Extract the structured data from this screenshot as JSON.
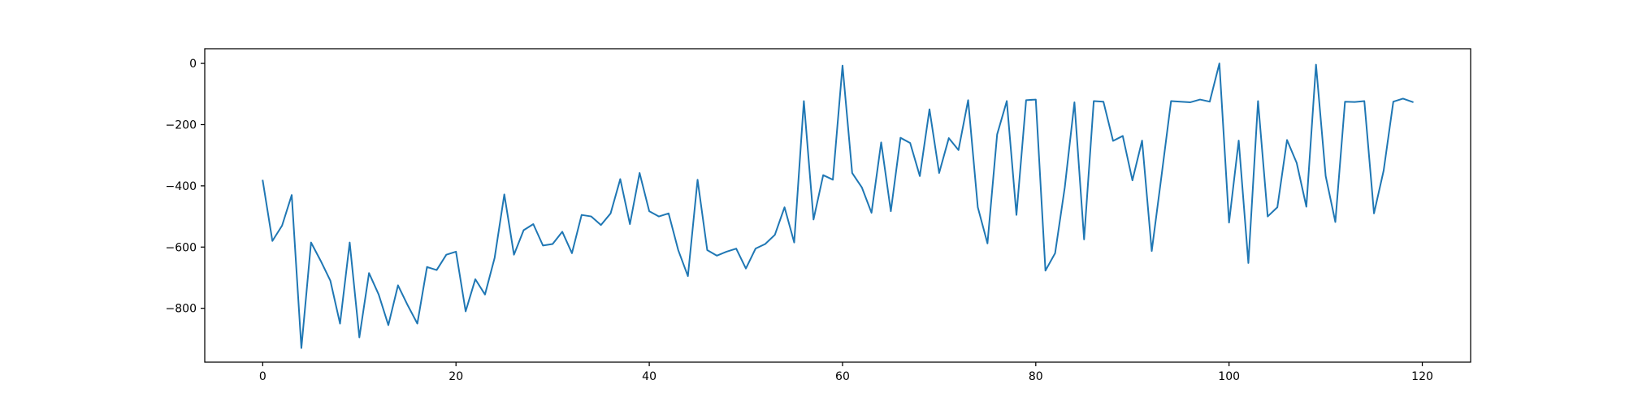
{
  "chart_data": {
    "type": "line",
    "title": "",
    "xlabel": "",
    "ylabel": "",
    "xlim": [
      -6,
      125
    ],
    "ylim": [
      -976,
      48
    ],
    "xticks": [
      0,
      20,
      40,
      60,
      80,
      100,
      120
    ],
    "yticks": [
      0,
      -200,
      -400,
      -600,
      -800
    ],
    "grid": false,
    "colors": {
      "line": "#1f77b4",
      "axes": "#000000",
      "background": "#ffffff"
    },
    "series": [
      {
        "x": [
          0,
          1,
          2,
          3,
          4,
          5,
          6,
          7,
          8,
          9,
          10,
          11,
          12,
          13,
          14,
          15,
          16,
          17,
          18,
          19,
          20,
          21,
          22,
          23,
          24,
          25,
          26,
          27,
          28,
          29,
          30,
          31,
          32,
          33,
          34,
          35,
          36,
          37,
          38,
          39,
          40,
          41,
          42,
          43,
          44,
          45,
          46,
          47,
          48,
          49,
          50,
          51,
          52,
          53,
          54,
          55,
          56,
          57,
          58,
          59,
          60,
          61,
          62,
          63,
          64,
          65,
          66,
          67,
          68,
          69,
          70,
          71,
          72,
          73,
          74,
          75,
          76,
          77,
          78,
          79,
          80,
          81,
          82,
          83,
          84,
          85,
          86,
          87,
          88,
          89,
          90,
          91,
          92,
          93,
          94,
          95,
          96,
          97,
          98,
          99,
          100,
          101,
          102,
          103,
          104,
          105,
          106,
          107,
          108,
          109,
          110,
          111,
          112,
          113,
          114,
          115,
          116,
          117,
          118,
          119
        ],
        "y": [
          -383,
          -580,
          -530,
          -430,
          -930,
          -585,
          -645,
          -710,
          -850,
          -585,
          -895,
          -685,
          -755,
          -855,
          -725,
          -790,
          -850,
          -665,
          -675,
          -625,
          -615,
          -810,
          -705,
          -755,
          -635,
          -428,
          -625,
          -545,
          -525,
          -595,
          -590,
          -550,
          -620,
          -495,
          -500,
          -528,
          -490,
          -378,
          -525,
          -358,
          -483,
          -500,
          -490,
          -610,
          -695,
          -380,
          -610,
          -628,
          -615,
          -605,
          -670,
          -605,
          -590,
          -560,
          -470,
          -585,
          -123,
          -510,
          -365,
          -380,
          -7,
          -358,
          -405,
          -488,
          -258,
          -483,
          -243,
          -260,
          -368,
          -150,
          -358,
          -244,
          -283,
          -120,
          -470,
          -588,
          -232,
          -123,
          -495,
          -120,
          -118,
          -677,
          -620,
          -405,
          -127,
          -575,
          -123,
          -125,
          -253,
          -237,
          -382,
          -252,
          -613,
          -370,
          -123,
          -125,
          -127,
          -118,
          -125,
          0,
          -520,
          -252,
          -652,
          -123,
          -500,
          -470,
          -250,
          -325,
          -468,
          -4,
          -368,
          -518,
          -125,
          -126,
          -123,
          -490,
          -350,
          -125,
          -115,
          -126
        ]
      }
    ]
  }
}
